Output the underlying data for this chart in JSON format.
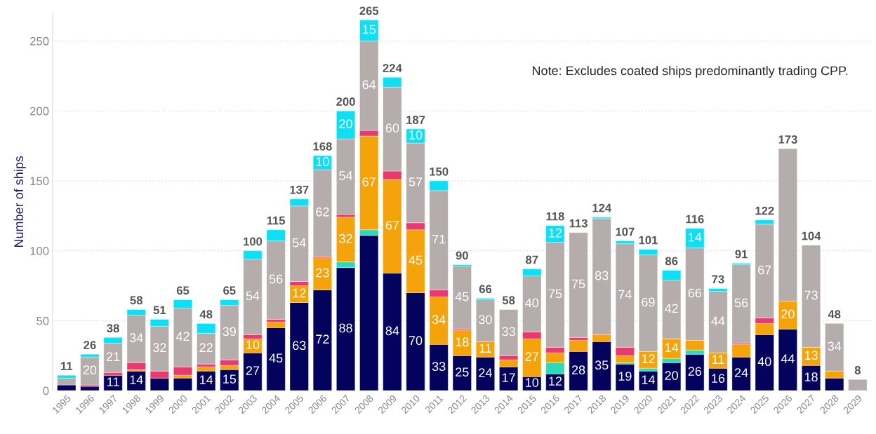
{
  "chart_data": {
    "type": "bar",
    "stacked": true,
    "ylabel": "Number of ships",
    "categories": [
      "1995",
      "1996",
      "1997",
      "1998",
      "1999",
      "2000",
      "2001",
      "2002",
      "2003",
      "2004",
      "2005",
      "2006",
      "2007",
      "2008",
      "2009",
      "2010",
      "2011",
      "2012",
      "2013",
      "2014",
      "2015",
      "2016",
      "2017",
      "2018",
      "2019",
      "2020",
      "2021",
      "2022",
      "2023",
      "2024",
      "2025",
      "2026",
      "2027",
      "2028",
      "2029"
    ],
    "series": [
      {
        "color": "#03035e",
        "values": [
          4,
          3,
          11,
          14,
          9,
          9,
          14,
          15,
          27,
          45,
          63,
          72,
          88,
          111,
          84,
          70,
          33,
          25,
          24,
          17,
          10,
          12,
          28,
          35,
          19,
          14,
          20,
          26,
          16,
          24,
          40,
          44,
          18,
          9,
          0
        ],
        "value_labels": [
          null,
          null,
          "11",
          "14",
          null,
          null,
          "14",
          "15",
          "27",
          "45",
          "63",
          "72",
          "88",
          null,
          "84",
          "70",
          "33",
          "25",
          "24",
          "17",
          "10",
          "12",
          "28",
          "35",
          "19",
          "14",
          "20",
          "26",
          "16",
          "24",
          "40",
          "44",
          "18",
          null,
          null
        ]
      },
      {
        "color": "#2ed9b8",
        "values": [
          0,
          0,
          0,
          0,
          0,
          0,
          0,
          0,
          0,
          0,
          0,
          0,
          4,
          4,
          0,
          0,
          0,
          0,
          0,
          0,
          0,
          8,
          0,
          0,
          1,
          2,
          3,
          3,
          0,
          0,
          0,
          0,
          0,
          0,
          0
        ]
      },
      {
        "color": "#f5a30a",
        "values": [
          0,
          0,
          0,
          1,
          0,
          2,
          3,
          3,
          10,
          4,
          12,
          23,
          32,
          67,
          67,
          45,
          34,
          18,
          11,
          5,
          27,
          7,
          8,
          5,
          5,
          12,
          14,
          7,
          11,
          9,
          8,
          20,
          13,
          5,
          0
        ],
        "value_labels": [
          null,
          null,
          null,
          null,
          null,
          null,
          null,
          null,
          "10",
          null,
          "12",
          "23",
          "32",
          "67",
          "67",
          "45",
          "34",
          "18",
          "11",
          null,
          "27",
          null,
          null,
          null,
          null,
          "12",
          "14",
          null,
          "11",
          null,
          null,
          "20",
          "13",
          null,
          null
        ]
      },
      {
        "color": "#e83a6e",
        "values": [
          0,
          1,
          2,
          5,
          5,
          6,
          2,
          4,
          3,
          2,
          3,
          1,
          2,
          4,
          6,
          5,
          5,
          1,
          0,
          3,
          5,
          4,
          2,
          0,
          6,
          0,
          0,
          0,
          0,
          1,
          4,
          0,
          0,
          0,
          0
        ]
      },
      {
        "color": "#b5acac",
        "values": [
          5,
          20,
          21,
          34,
          32,
          42,
          22,
          39,
          54,
          56,
          54,
          62,
          54,
          64,
          60,
          57,
          71,
          45,
          30,
          33,
          40,
          75,
          75,
          83,
          74,
          69,
          42,
          66,
          44,
          56,
          67,
          109,
          73,
          34,
          8
        ],
        "value_labels": [
          null,
          "20",
          "21",
          "34",
          "32",
          "42",
          "22",
          "39",
          "54",
          "56",
          "54",
          "62",
          "54",
          "64",
          "60",
          "57",
          "71",
          "45",
          "30",
          "33",
          "40",
          "75",
          "75",
          "83",
          "74",
          "69",
          "42",
          "66",
          "44",
          "56",
          "67",
          null,
          "73",
          "34",
          null
        ]
      },
      {
        "color": "#0ddff5",
        "values": [
          2,
          2,
          4,
          4,
          5,
          6,
          7,
          4,
          6,
          8,
          5,
          10,
          20,
          15,
          7,
          10,
          7,
          1,
          1,
          0,
          5,
          12,
          0,
          1,
          2,
          4,
          7,
          14,
          2,
          1,
          3,
          0,
          0,
          0,
          0
        ],
        "value_labels": [
          null,
          null,
          null,
          null,
          null,
          null,
          null,
          null,
          null,
          null,
          null,
          "10",
          "20",
          "15",
          null,
          "10",
          null,
          null,
          null,
          null,
          null,
          "12",
          null,
          null,
          null,
          null,
          null,
          "14",
          null,
          null,
          null,
          null,
          null,
          null,
          null
        ]
      }
    ],
    "totals": [
      "11",
      "26",
      "38",
      "58",
      "51",
      "65",
      "48",
      "65",
      "100",
      "115",
      "137",
      "168",
      "200",
      "265",
      "224",
      "187",
      "150",
      "90",
      "66",
      "58",
      "87",
      "118",
      "113",
      "124",
      "107",
      "101",
      "86",
      "116",
      "73",
      "91",
      "122",
      "173",
      "104",
      "48",
      "8"
    ],
    "ylim": [
      0,
      270
    ],
    "yticks": [
      0,
      50,
      100,
      150,
      200,
      250
    ],
    "grid": "y",
    "legend": false,
    "annotations": [
      "Note: Excludes coated ships predominantly trading CPP."
    ]
  }
}
